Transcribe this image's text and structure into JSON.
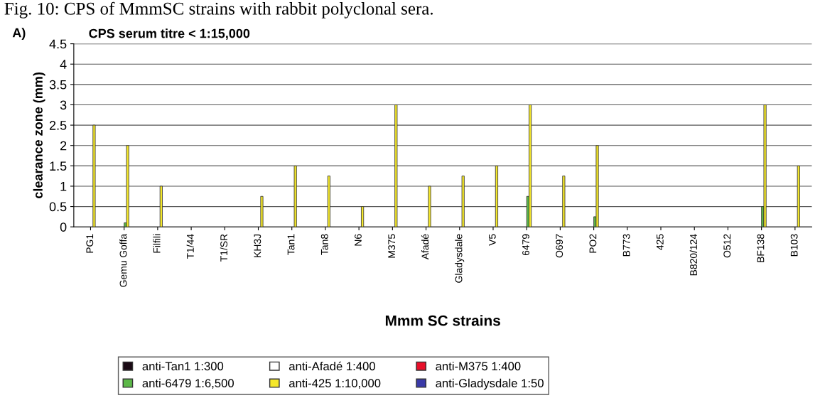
{
  "chart_data": {
    "type": "bar",
    "title": "CPS serum titre < 1:15,000",
    "xlabel": "Mmm SC strains",
    "ylabel": "clearance zone (mm)",
    "annotations": [
      "Fig. 10: CPS of MmmSC strains with rabbit polyclonal sera.",
      "A)"
    ],
    "categories": [
      "PG1",
      "Gemu Goffa",
      "Filfili",
      "T1/44",
      "T1/SR",
      "KH3J",
      "Tan1",
      "Tan8",
      "N6",
      "M375",
      "Afadé",
      "Gladysdale",
      "V5",
      "6479",
      "O697",
      "PO2",
      "B773",
      "425",
      "B820/124",
      "O512",
      "BF138",
      "B103"
    ],
    "series": [
      {
        "name": "anti-Tan1 1:300",
        "color": "#1a0a14",
        "values": [
          0,
          0,
          0,
          0,
          0,
          0,
          0,
          0,
          0,
          0,
          0,
          0,
          0,
          0,
          0,
          0,
          0,
          0,
          0,
          0,
          0,
          0
        ]
      },
      {
        "name": "anti-Afadé 1:400",
        "color": "#ffffff",
        "values": [
          0,
          0,
          0,
          0,
          0,
          0,
          0,
          0,
          0,
          0,
          0,
          0,
          0,
          0,
          0,
          0,
          0,
          0,
          0,
          0,
          0,
          0
        ]
      },
      {
        "name": "anti-M375 1:400",
        "color": "#e8102a",
        "values": [
          0,
          0,
          0,
          0,
          0,
          0,
          0,
          0,
          0,
          0,
          0,
          0,
          0,
          0,
          0,
          0,
          0,
          0,
          0,
          0,
          0,
          0
        ]
      },
      {
        "name": "anti-6479 1:6,500",
        "color": "#5cb848",
        "values": [
          0,
          0.1,
          0,
          0,
          0,
          0,
          0,
          0,
          0,
          0,
          0,
          0,
          0,
          0.75,
          0,
          0.25,
          0,
          0,
          0,
          0,
          0.5,
          0
        ]
      },
      {
        "name": "anti-425 1:10,000",
        "color": "#f5e82a",
        "values": [
          2.5,
          2,
          1,
          0,
          0,
          0.75,
          1.5,
          1.25,
          0.5,
          3,
          1,
          1.25,
          1.5,
          3,
          1.25,
          2,
          0,
          0,
          0,
          0,
          3,
          1.5
        ]
      },
      {
        "name": "anti-Gladysdale 1:50",
        "color": "#3a3aa8",
        "values": [
          0,
          0,
          0,
          0,
          0,
          0,
          0,
          0,
          0,
          0,
          0,
          0,
          0,
          0,
          0,
          0,
          0,
          0,
          0,
          0,
          0,
          0
        ]
      }
    ],
    "ylim": [
      0,
      4.5
    ],
    "yticks": [
      0,
      0.5,
      1,
      1.5,
      2,
      2.5,
      3,
      3.5,
      4,
      4.5
    ],
    "grid": "y",
    "legend": "bottom"
  }
}
